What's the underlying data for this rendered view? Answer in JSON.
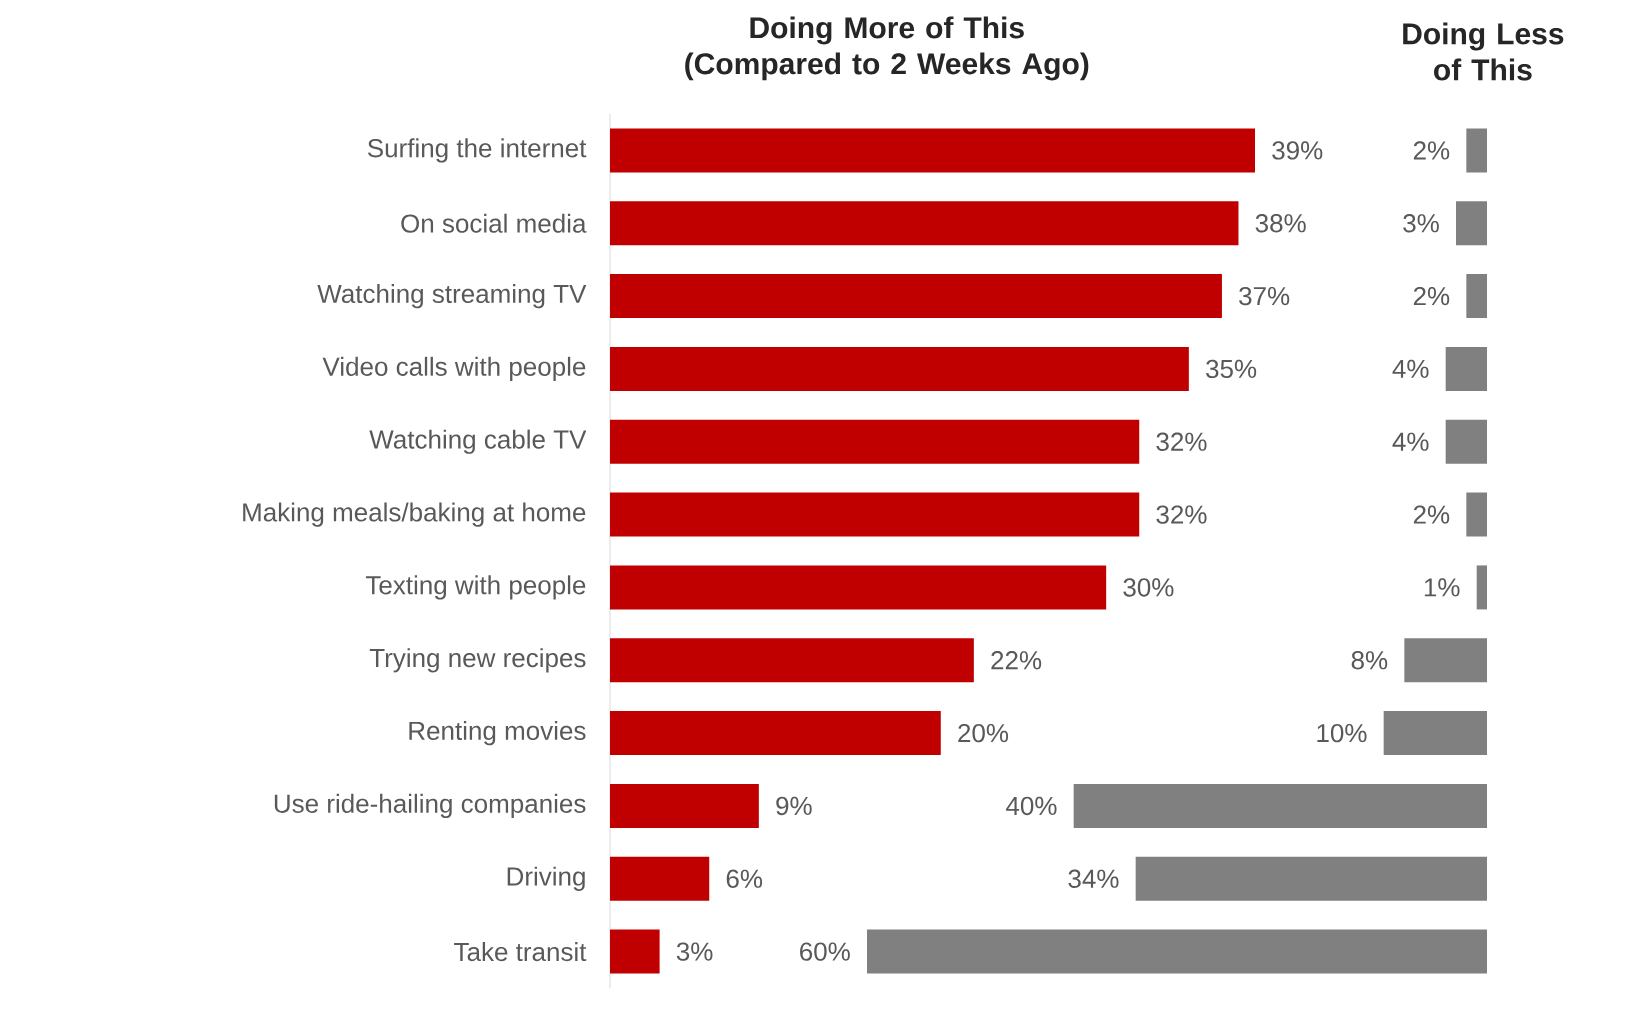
{
  "chart_data": [
    {
      "type": "bar",
      "orientation": "horizontal",
      "title": "Doing More of This (Compared to 2 Weeks Ago)",
      "categories": [
        "Surfing the internet",
        "On social media",
        "Watching streaming TV",
        "Video calls with people",
        "Watching cable TV",
        "Making meals/baking at home",
        "Texting with people",
        "Trying new recipes",
        "Renting movies",
        "Use ride-hailing companies",
        "Driving",
        "Take transit"
      ],
      "values": [
        39,
        38,
        37,
        35,
        32,
        32,
        30,
        22,
        20,
        9,
        6,
        3
      ],
      "value_labels": [
        "39%",
        "38%",
        "37%",
        "35%",
        "32%",
        "32%",
        "30%",
        "22%",
        "20%",
        "9%",
        "6%",
        "3%"
      ],
      "color": "#c00000"
    },
    {
      "type": "bar",
      "orientation": "horizontal",
      "title": "Doing Less of This",
      "categories": [
        null,
        null,
        null,
        null,
        null,
        null,
        null,
        null,
        null,
        null,
        null,
        null
      ],
      "values": [
        2,
        3,
        2,
        4,
        4,
        2,
        1,
        8,
        10,
        40,
        34,
        60
      ],
      "value_labels": [
        "2%",
        "3%",
        "2%",
        "4%",
        "4%",
        "2%",
        "1%",
        "8%",
        "10%",
        "40%",
        "34%",
        "60%"
      ],
      "color": "#808080"
    }
  ]
}
